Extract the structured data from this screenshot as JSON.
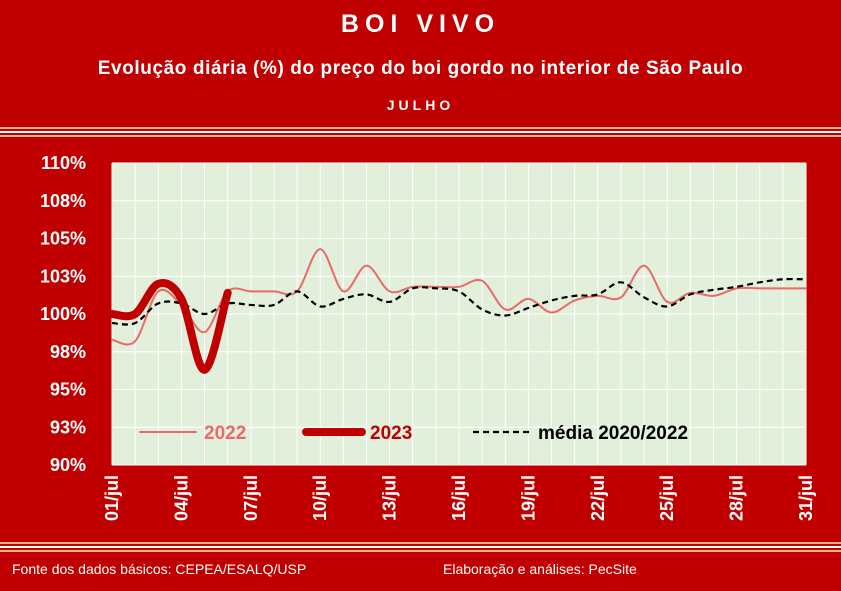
{
  "header": {
    "title": "BOI VIVO",
    "subtitle": "Evolução diária (%) do preço do boi gordo no interior de São Paulo",
    "month": "JULHO"
  },
  "footer": {
    "source": "Fonte dos dados básicos: CEPEA/ESALQ/USP",
    "credit": "Elaboração e análises: PecSite"
  },
  "colors": {
    "frame": "#c00000",
    "plot_bg": "#e2efda",
    "stripe": "#f4b183",
    "series_2022": "#ea6a6a",
    "series_2023": "#c00000",
    "series_media": "#000000"
  },
  "chart_data": {
    "type": "line",
    "xlabel": "",
    "ylabel": "",
    "ylim": [
      90,
      110
    ],
    "y_ticks": [
      90,
      92.5,
      95,
      97.5,
      100,
      102.5,
      105,
      107.5,
      110
    ],
    "y_tick_labels": [
      "90%",
      "93%",
      "95%",
      "98%",
      "100%",
      "103%",
      "105%",
      "108%",
      "110%"
    ],
    "x_tick_days": [
      1,
      4,
      7,
      10,
      13,
      16,
      19,
      22,
      25,
      28,
      31
    ],
    "x_tick_labels": [
      "01/jul",
      "04/jul",
      "07/jul",
      "10/jul",
      "13/jul",
      "16/jul",
      "19/jul",
      "22/jul",
      "25/jul",
      "28/jul",
      "31/jul"
    ],
    "grid": true,
    "legend_position": "bottom-inside",
    "series": [
      {
        "name": "2022",
        "x": [
          1,
          2,
          3,
          4,
          5,
          6,
          7,
          8,
          9,
          10,
          11,
          12,
          13,
          14,
          15,
          16,
          17,
          18,
          19,
          20,
          21,
          22,
          23,
          24,
          25,
          26,
          27,
          28,
          29,
          30,
          31
        ],
        "values": [
          98.3,
          98.2,
          101.5,
          100.6,
          98.8,
          101.5,
          101.5,
          101.5,
          101.5,
          104.3,
          101.5,
          103.2,
          101.5,
          101.8,
          101.8,
          101.8,
          102.2,
          100.3,
          101.0,
          100.1,
          100.9,
          101.2,
          101.1,
          103.2,
          100.8,
          101.4,
          101.2,
          101.7,
          101.7,
          101.7,
          101.7
        ]
      },
      {
        "name": "2023",
        "x": [
          1,
          2,
          3,
          4,
          5,
          6
        ],
        "values": [
          100.0,
          100.0,
          102.0,
          101.0,
          96.3,
          101.4
        ]
      },
      {
        "name": "média 2020/2022",
        "x": [
          1,
          2,
          3,
          4,
          5,
          6,
          7,
          8,
          9,
          10,
          11,
          12,
          13,
          14,
          15,
          16,
          17,
          18,
          19,
          20,
          21,
          22,
          23,
          24,
          25,
          26,
          27,
          28,
          29,
          30,
          31
        ],
        "values": [
          99.4,
          99.4,
          100.7,
          100.7,
          100.0,
          100.7,
          100.6,
          100.6,
          101.5,
          100.5,
          101.0,
          101.3,
          100.8,
          101.7,
          101.7,
          101.5,
          100.3,
          99.9,
          100.4,
          100.9,
          101.2,
          101.3,
          102.1,
          101.1,
          100.5,
          101.3,
          101.6,
          101.8,
          102.1,
          102.3,
          102.3
        ]
      }
    ]
  }
}
